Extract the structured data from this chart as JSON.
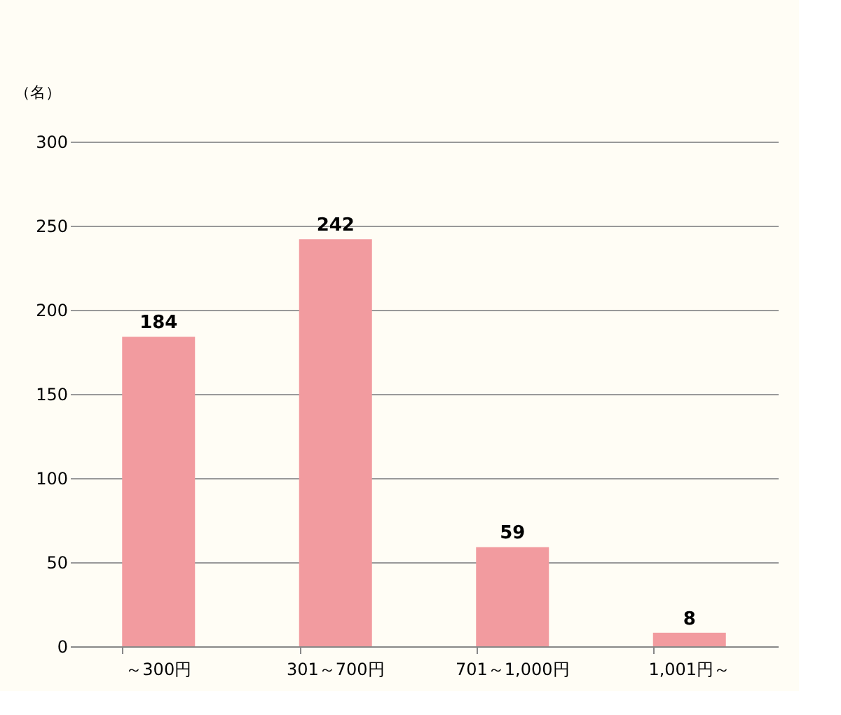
{
  "chart_data": {
    "type": "bar",
    "ylabel": "（名）",
    "categories": [
      "～300円",
      "301～700円",
      "701～1,000円",
      "1,001円～"
    ],
    "values": [
      184,
      242,
      59,
      8
    ],
    "color": "#f29b9f",
    "ylim": [
      0,
      300
    ],
    "yticks": [
      0,
      50,
      100,
      150,
      200,
      250,
      300
    ],
    "grid": "y",
    "data_labels": true
  }
}
